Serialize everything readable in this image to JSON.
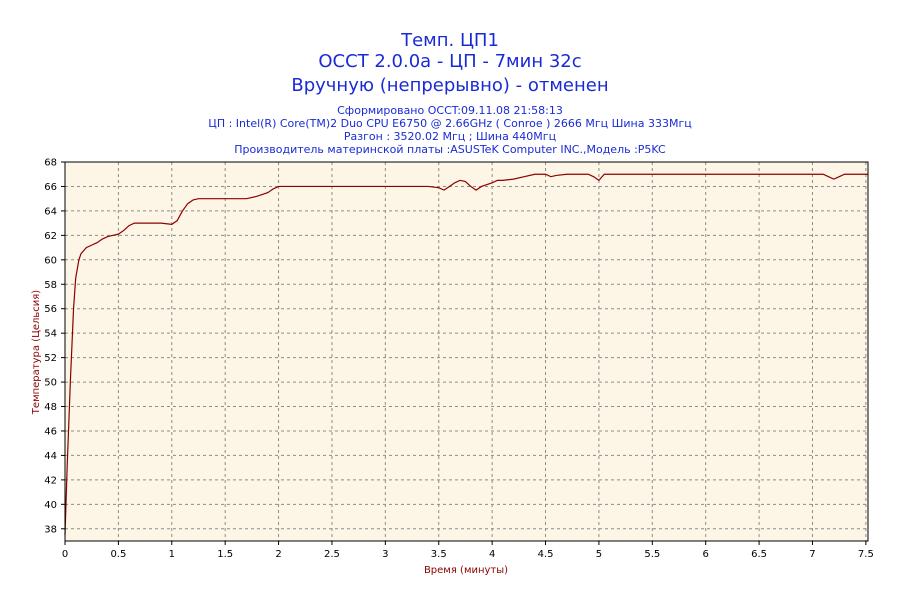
{
  "header": {
    "title_lines": [
      "Темп. ЦП1",
      "OCCT 2.0.0a - ЦП - 7мин 32с",
      "Вручную (непрерывно) - отменен"
    ],
    "info_lines": [
      "Сформировано OCCT:09.11.08 21:58:13",
      "ЦП : Intel(R) Core(TM)2 Duo CPU E6750 @ 2.66GHz ( Conroe ) 2666 Мгц Шина 333Мгц",
      "Разгон : 3520.02 Мгц ; Шина 440Мгц",
      "Производитель материнской платы :ASUSTeK Computer INC.,Модель :P5KC"
    ]
  },
  "colors": {
    "plot_background": "#fdf6e6",
    "series_line": "#8b0000",
    "title_text": "#1a2bd6",
    "axis_label_text": "#8b0000"
  },
  "chart_data": {
    "type": "line",
    "xlabel": "Время (минуты)",
    "ylabel": "Температура (Цельсия)",
    "xlim": [
      0,
      7.52
    ],
    "ylim": [
      37,
      68
    ],
    "grid": true,
    "x_ticks": [
      0,
      0.5,
      1,
      1.5,
      2,
      2.5,
      3,
      3.5,
      4,
      4.5,
      5,
      5.5,
      6,
      6.5,
      7,
      7.5
    ],
    "y_ticks": [
      38,
      40,
      42,
      44,
      46,
      48,
      50,
      52,
      54,
      56,
      58,
      60,
      62,
      64,
      66,
      68
    ],
    "series": [
      {
        "x": [
          0,
          0.02,
          0.05,
          0.08,
          0.1,
          0.13,
          0.15,
          0.18,
          0.2,
          0.25,
          0.3,
          0.35,
          0.4,
          0.45,
          0.5,
          0.55,
          0.6,
          0.65,
          0.7,
          0.75,
          0.8,
          0.9,
          1.0,
          1.05,
          1.1,
          1.15,
          1.2,
          1.25,
          1.3,
          1.5,
          1.7,
          1.8,
          1.9,
          1.95,
          2.0,
          2.2,
          2.4,
          2.5,
          2.7,
          3.0,
          3.4,
          3.5,
          3.55,
          3.6,
          3.65,
          3.7,
          3.75,
          3.8,
          3.85,
          3.9,
          4.0,
          4.05,
          4.1,
          4.2,
          4.3,
          4.4,
          4.5,
          4.55,
          4.6,
          4.7,
          4.9,
          4.95,
          5.0,
          5.05,
          5.1,
          5.5,
          6.0,
          6.5,
          6.7,
          7.0,
          7.1,
          7.15,
          7.2,
          7.25,
          7.3,
          7.52
        ],
        "values": [
          37.5,
          43,
          50,
          56,
          58.5,
          60,
          60.5,
          60.8,
          61,
          61.2,
          61.4,
          61.7,
          61.9,
          62,
          62.1,
          62.4,
          62.8,
          63,
          63,
          63,
          63,
          63,
          62.9,
          63.2,
          64,
          64.6,
          64.9,
          65,
          65,
          65,
          65,
          65.2,
          65.5,
          65.8,
          66,
          66,
          66,
          66,
          66,
          66,
          66,
          65.9,
          65.7,
          66,
          66.3,
          66.5,
          66.4,
          66,
          65.7,
          66,
          66.3,
          66.5,
          66.5,
          66.6,
          66.8,
          67,
          67,
          66.8,
          66.9,
          67,
          67,
          66.8,
          66.5,
          67,
          67,
          67,
          67,
          67,
          67,
          67,
          67,
          66.8,
          66.6,
          66.8,
          67,
          67
        ]
      }
    ]
  }
}
